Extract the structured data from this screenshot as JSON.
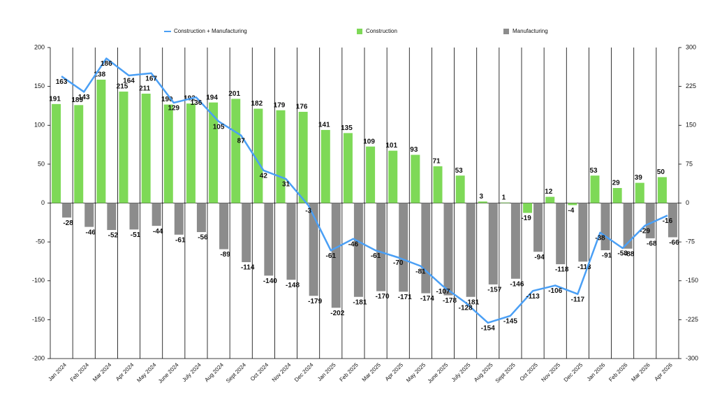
{
  "chart_data": {
    "type": "bar-line",
    "categories": [
      "Jan 2024",
      "Feb 2024",
      "Mar 2024",
      "Apr 2024",
      "May 2024",
      "June 2024",
      "July 2024",
      "Aug 2024",
      "Sept 2024",
      "Oct 2024",
      "Nov 2024",
      "Dec 2024",
      "Jan 2025",
      "Feb 2025",
      "Mar 2025",
      "Apr 2025",
      "May 2025",
      "June 2025",
      "July 2025",
      "Aug 2025",
      "Sept 2025",
      "Oct 2025",
      "Nov 2025",
      "Dec 2025",
      "Jan 2026",
      "Feb 2026",
      "Mar 2026",
      "Apr 2026"
    ],
    "series": [
      {
        "name": "Construction + Manufacturing",
        "type": "line",
        "color": "#4a9ff5",
        "axis": "y",
        "values": [
          163,
          143,
          186,
          164,
          167,
          129,
          136,
          105,
          87,
          42,
          31,
          -3,
          -61,
          -46,
          -61,
          -70,
          -81,
          -107,
          -128,
          -154,
          -145,
          -113,
          -106,
          -117,
          -38,
          -58,
          -29,
          -16
        ]
      },
      {
        "name": "Construction",
        "type": "bar",
        "color": "#7ed957",
        "axis": "y2",
        "values": [
          191,
          189,
          238,
          215,
          211,
          190,
          192,
          194,
          201,
          182,
          179,
          176,
          141,
          135,
          109,
          101,
          93,
          71,
          53,
          3,
          1,
          -19,
          12,
          -4,
          53,
          29,
          39,
          50
        ]
      },
      {
        "name": "Manufacturing",
        "type": "bar",
        "color": "#8c8c8c",
        "axis": "y2",
        "values": [
          -28,
          -46,
          -52,
          -51,
          -44,
          -61,
          -56,
          -89,
          -114,
          -140,
          -148,
          -179,
          -202,
          -181,
          -170,
          -171,
          -174,
          -178,
          -181,
          -157,
          -146,
          -94,
          -118,
          -113,
          -91,
          -88,
          -68,
          -66
        ]
      }
    ],
    "ylim": [
      -200,
      200
    ],
    "yticks": [
      -200,
      -150,
      -100,
      -50,
      0,
      50,
      100,
      150,
      200
    ],
    "y2lim": [
      -300,
      300
    ],
    "y2ticks": [
      -300,
      -225,
      -150,
      -75,
      0,
      75,
      150,
      225,
      300
    ],
    "legend": "top"
  }
}
